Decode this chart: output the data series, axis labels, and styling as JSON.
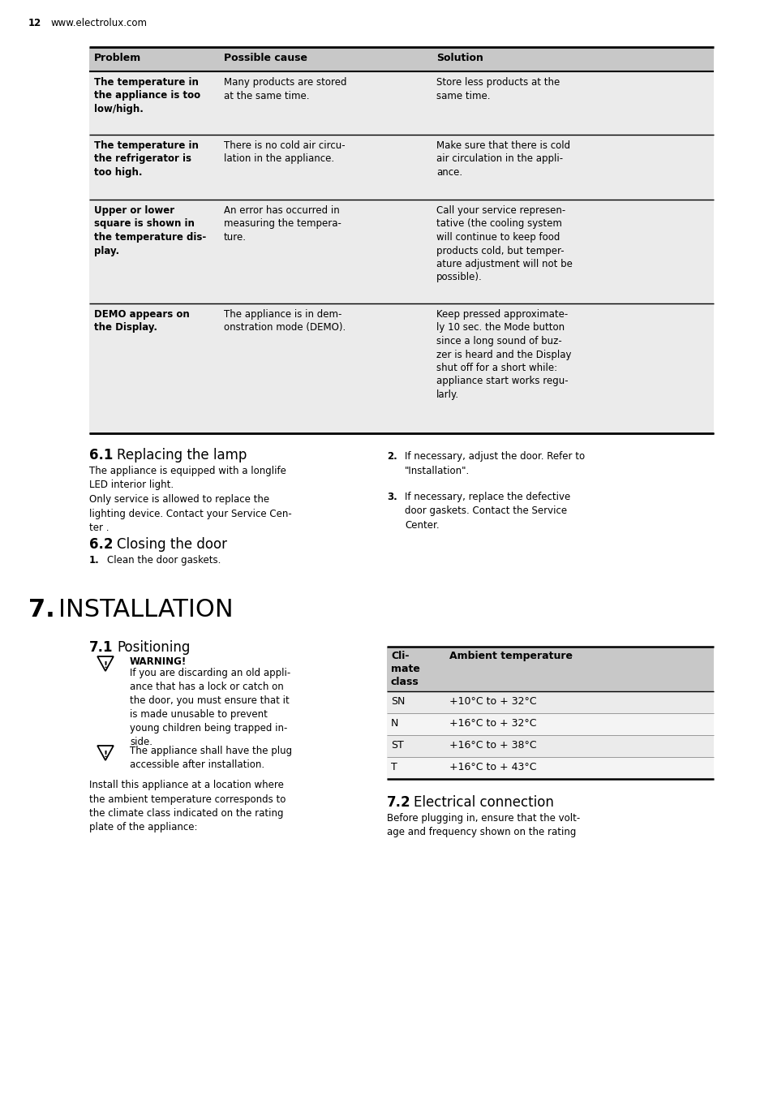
{
  "page_number": "12",
  "website": "www.electrolux.com",
  "bg_color": "#ffffff",
  "header": {
    "col1": "Problem",
    "col2": "Possible cause",
    "col3": "Solution"
  },
  "rows": [
    {
      "problem": "The temperature in\nthe appliance is too\nlow/high.",
      "cause": "Many products are stored\nat the same time.",
      "solution": "Store less products at the\nsame time."
    },
    {
      "problem": "The temperature in\nthe refrigerator is\ntoo high.",
      "cause": "There is no cold air circu-\nlation in the appliance.",
      "solution": "Make sure that there is cold\nair circulation in the appli-\nance."
    },
    {
      "problem": "Upper or lower\nsquare is shown in\nthe temperature dis-\nplay.",
      "cause": "An error has occurred in\nmeasuring the tempera-\nture.",
      "solution": "Call your service represen-\ntative (the cooling system\nwill continue to keep food\nproducts cold, but temper-\nature adjustment will not be\npossible)."
    },
    {
      "problem": "DEMO appears on\nthe Display.",
      "cause": "The appliance is in dem-\nonstration mode (DEMO).",
      "solution": "Keep pressed approximate-\nly 10 sec. the Mode button\nsince a long sound of buz-\nzer is heard and the Display\nshut off for a short while:\nappliance start works regu-\nlarly."
    }
  ],
  "section61_left_text": "The appliance is equipped with a longlife\nLED interior light.\nOnly service is allowed to replace the\nlighting device. Contact your Service Cen-\nter .",
  "section61_right_items": [
    {
      "num": "2.",
      "text": "If necessary, adjust the door. Refer to\n\"Installation\"."
    },
    {
      "num": "3.",
      "text": "If necessary, replace the defective\ndoor gaskets. Contact the Service\nCenter."
    }
  ],
  "section62_items": [
    {
      "num": "1.",
      "text": "Clean the door gaskets."
    }
  ],
  "warning_text": "If you are discarding an old appli-\nance that has a lock or catch on\nthe door, you must ensure that it\nis made unusable to prevent\nyoung children being trapped in-\nside.",
  "warning2_text": "The appliance shall have the plug\naccessible after installation.",
  "install_text": "Install this appliance at a location where\nthe ambient temperature corresponds to\nthe climate class indicated on the rating\nplate of the appliance:",
  "climate_table": {
    "header_col1": "Cli-\nmate\nclass",
    "header_col2": "Ambient temperature",
    "rows": [
      {
        "class": "SN",
        "temp": "+10°C to + 32°C"
      },
      {
        "class": "N",
        "temp": "+16°C to + 32°C"
      },
      {
        "class": "ST",
        "temp": "+16°C to + 38°C"
      },
      {
        "class": "T",
        "temp": "+16°C to + 43°C"
      }
    ]
  },
  "section72_text": "Before plugging in, ensure that the volt-\nage and frequency shown on the rating"
}
